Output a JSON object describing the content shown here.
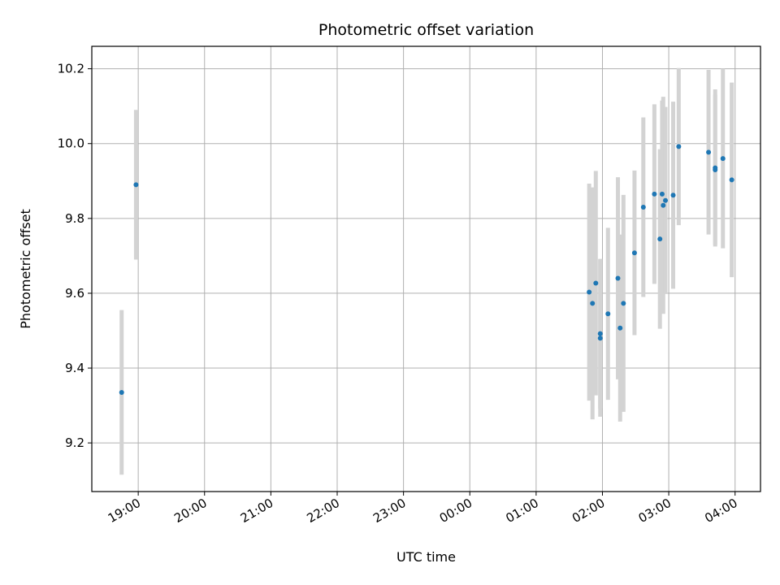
{
  "chart_data": {
    "type": "scatter",
    "title": "Photometric offset variation",
    "xlabel": "UTC time",
    "ylabel": "Photometric offset",
    "x_tick_labels": [
      "19:00",
      "20:00",
      "21:00",
      "22:00",
      "23:00",
      "00:00",
      "01:00",
      "02:00",
      "03:00",
      "04:00"
    ],
    "x_ticks": [
      "2000-01-01T19:00",
      "2000-01-01T20:00",
      "2000-01-01T21:00",
      "2000-01-01T22:00",
      "2000-01-01T23:00",
      "2000-01-02T00:00",
      "2000-01-02T01:00",
      "2000-01-02T02:00",
      "2000-01-02T03:00",
      "2000-01-02T04:00"
    ],
    "xlim": [
      "2000-01-01T18:18",
      "2000-01-02T04:23"
    ],
    "y_ticks": [
      9.2,
      9.4,
      9.6,
      9.8,
      10.0,
      10.2
    ],
    "y_tick_labels": [
      "9.2",
      "9.4",
      "9.6",
      "9.8",
      "10.0",
      "10.2"
    ],
    "ylim": [
      9.07,
      10.26
    ],
    "grid": true,
    "point_color": "#1f77b4",
    "errorbar_color": "#d3d3d3",
    "points": [
      {
        "t": "2000-01-01T18:45",
        "y": 9.335,
        "err": 0.22
      },
      {
        "t": "2000-01-01T18:58",
        "y": 9.89,
        "err": 0.2
      },
      {
        "t": "2000-01-02T01:48",
        "y": 9.603,
        "err": 0.29
      },
      {
        "t": "2000-01-02T01:51",
        "y": 9.573,
        "err": 0.31
      },
      {
        "t": "2000-01-02T01:54",
        "y": 9.627,
        "err": 0.3
      },
      {
        "t": "2000-01-02T01:58",
        "y": 9.492,
        "err": 0.2
      },
      {
        "t": "2000-01-02T01:58",
        "y": 9.48,
        "err": 0.21
      },
      {
        "t": "2000-01-02T02:05",
        "y": 9.545,
        "err": 0.23
      },
      {
        "t": "2000-01-02T02:14",
        "y": 9.64,
        "err": 0.27
      },
      {
        "t": "2000-01-02T02:16",
        "y": 9.507,
        "err": 0.25
      },
      {
        "t": "2000-01-02T02:19",
        "y": 9.573,
        "err": 0.29
      },
      {
        "t": "2000-01-02T02:29",
        "y": 9.708,
        "err": 0.22
      },
      {
        "t": "2000-01-02T02:37",
        "y": 9.83,
        "err": 0.24
      },
      {
        "t": "2000-01-02T02:47",
        "y": 9.865,
        "err": 0.24
      },
      {
        "t": "2000-01-02T02:52",
        "y": 9.745,
        "err": 0.24
      },
      {
        "t": "2000-01-02T02:54",
        "y": 9.865,
        "err": 0.25
      },
      {
        "t": "2000-01-02T02:55",
        "y": 9.835,
        "err": 0.29
      },
      {
        "t": "2000-01-02T02:57",
        "y": 9.848,
        "err": 0.25
      },
      {
        "t": "2000-01-02T03:04",
        "y": 9.862,
        "err": 0.25
      },
      {
        "t": "2000-01-02T03:09",
        "y": 9.992,
        "err": 0.21
      },
      {
        "t": "2000-01-02T03:36",
        "y": 9.977,
        "err": 0.22
      },
      {
        "t": "2000-01-02T03:42",
        "y": 9.935,
        "err": 0.21
      },
      {
        "t": "2000-01-02T03:42",
        "y": 9.93,
        "err": 0.2
      },
      {
        "t": "2000-01-02T03:49",
        "y": 9.96,
        "err": 0.24
      },
      {
        "t": "2000-01-02T03:57",
        "y": 9.903,
        "err": 0.26
      }
    ]
  }
}
